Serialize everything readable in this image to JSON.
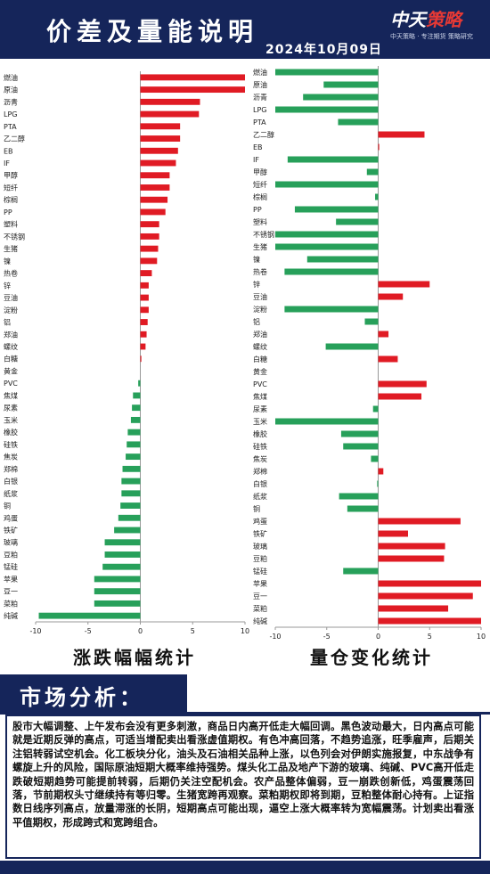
{
  "header": {
    "title": "价差及量能说明",
    "date": "2024年10月09日",
    "logo_main": "中天策略",
    "logo_sub": "中天策略 · 专注期货 策略研究"
  },
  "chart_titles": {
    "left": "涨跌幅幅统计",
    "right": "量仓变化统计"
  },
  "market": {
    "banner": "市场分析：",
    "text": "股市大幅调整、上午发布会没有更多刺激，商品日内高开低走大幅回调。黑色波动最大，日内高点可能就是近期反弹的高点，可适当增配卖出看涨虚值期权。有色冲高回落，不趋势追涨，旺季雇声，后期关注铝转弱试空机会。化工板块分化，油头及石油相关品种上涨，以色列会对伊朗实施报复，中东战争有螺旋上升的风险，国际原油短期大概率维持强势。煤头化工品及地产下游的玻璃、纯碱、PVC高开低走跌破短期趋势可能提前转弱，后期仍关注空配机会。农产品整体偏弱，豆一崩跌创新低，鸡蛋震荡回落，节前期权头寸继续持有等归零。生猪宽跨再观察。菜粕期权即将到期，豆粕整体耐心持有。上证指数日线序列高点，放量滞涨的长阴，短期高点可能出现，逼空上涨大概率转为宽幅震荡。计划卖出看涨平值期权，形成跨式和宽跨组合。"
  },
  "colors": {
    "up": "#e01b24",
    "down": "#27a05a",
    "header_bg": "#15255a"
  },
  "chart_data": [
    {
      "type": "bar",
      "orientation": "horizontal",
      "title": "涨跌幅幅统计",
      "xlim": [
        -10,
        10
      ],
      "xticks": [
        -10,
        -5,
        0,
        5,
        10
      ],
      "categories": [
        "燃油",
        "原油",
        "沥青",
        "LPG",
        "PTA",
        "乙二醇",
        "EB",
        "IF",
        "甲醇",
        "短纤",
        "棕榈",
        "PP",
        "塑料",
        "不锈钢",
        "生猪",
        "镍",
        "热卷",
        "锌",
        "豆油",
        "淀粉",
        "铝",
        "郑油",
        "螺纹",
        "白糖",
        "黄金",
        "PVC",
        "焦煤",
        "尿素",
        "玉米",
        "橡胶",
        "硅铁",
        "焦炭",
        "郑棉",
        "白银",
        "纸浆",
        "铜",
        "鸡蛋",
        "铁矿",
        "玻璃",
        "豆粕",
        "锰硅",
        "苹果",
        "豆一",
        "菜粕",
        "纯碱"
      ],
      "values": [
        10.2,
        10.1,
        5.7,
        5.6,
        3.8,
        3.8,
        3.6,
        3.4,
        2.8,
        2.8,
        2.6,
        2.4,
        1.8,
        1.8,
        1.7,
        1.6,
        1.1,
        0.8,
        0.8,
        0.8,
        0.7,
        0.6,
        0.5,
        0.1,
        0.0,
        -0.2,
        -0.7,
        -0.8,
        -0.9,
        -1.2,
        -1.3,
        -1.4,
        -1.7,
        -1.8,
        -1.8,
        -1.9,
        -2.1,
        -2.5,
        -3.4,
        -3.4,
        -3.6,
        -4.4,
        -4.4,
        -4.4,
        -9.7
      ]
    },
    {
      "type": "bar",
      "orientation": "horizontal",
      "title": "量仓变化统计",
      "xlim": [
        -10,
        10
      ],
      "xticks": [
        -10,
        -5,
        0,
        5,
        10
      ],
      "categories": [
        "燃油",
        "原油",
        "沥青",
        "LPG",
        "PTA",
        "乙二醇",
        "EB",
        "IF",
        "甲醇",
        "短纤",
        "棕榈",
        "PP",
        "塑料",
        "不锈钢",
        "生猪",
        "镍",
        "热卷",
        "锌",
        "豆油",
        "淀粉",
        "铝",
        "郑油",
        "螺纹",
        "白糖",
        "黄金",
        "PVC",
        "焦煤",
        "尿素",
        "玉米",
        "橡胶",
        "硅铁",
        "焦炭",
        "郑棉",
        "白银",
        "纸浆",
        "铜",
        "鸡蛋",
        "铁矿",
        "玻璃",
        "豆粕",
        "锰硅",
        "苹果",
        "豆一",
        "菜粕",
        "纯碱"
      ],
      "values": [
        -10,
        -5.3,
        -7.3,
        -10,
        -3.9,
        4.5,
        0.1,
        -8.8,
        -1.1,
        -10,
        -0.3,
        -8.1,
        -4.1,
        -10,
        -10,
        -6.9,
        -9.1,
        5.0,
        2.4,
        -9.1,
        -1.3,
        1.0,
        -5.1,
        1.9,
        0.0,
        4.7,
        4.2,
        -0.5,
        -10,
        -3.6,
        -3.4,
        -0.7,
        0.5,
        -0.1,
        -3.8,
        -3.0,
        8.0,
        2.9,
        6.5,
        6.4,
        -3.4,
        10,
        9.2,
        6.8,
        10
      ]
    }
  ]
}
